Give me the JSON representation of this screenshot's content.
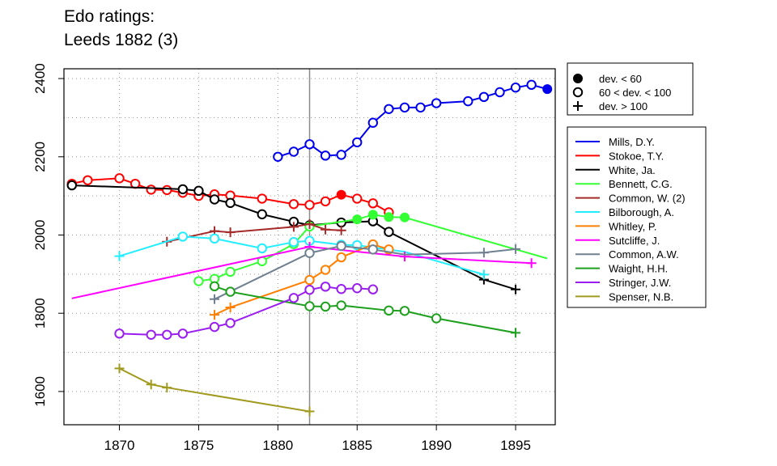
{
  "chart_data": {
    "type": "line",
    "title": [
      "Edo ratings:",
      "Leeds 1882 (3)"
    ],
    "xlabel": "",
    "ylabel": "",
    "xlim": [
      1866.5,
      1897.5
    ],
    "ylim": [
      1515,
      2425
    ],
    "xticks": [
      1870,
      1875,
      1880,
      1885,
      1890,
      1895
    ],
    "yticks": [
      1600,
      1800,
      2000,
      2200,
      2400
    ],
    "grid": true,
    "reference_line_x": 1882,
    "marker_legend": [
      {
        "marker": "filled-circle",
        "label": "dev. < 60"
      },
      {
        "marker": "open-circle",
        "label": "60 < dev. < 100"
      },
      {
        "marker": "plus",
        "label": "dev. > 100"
      }
    ],
    "legend_placement": "right",
    "series": [
      {
        "name": "Mills, D.Y.",
        "color": "#0000ee",
        "points": [
          [
            1880,
            2200,
            "o"
          ],
          [
            1881,
            2213,
            "o"
          ],
          [
            1882,
            2232,
            "o"
          ],
          [
            1883,
            2203,
            "o"
          ],
          [
            1884,
            2205,
            "o"
          ],
          [
            1885,
            2237,
            "o"
          ],
          [
            1886,
            2287,
            "o"
          ],
          [
            1887,
            2322,
            "o"
          ],
          [
            1888,
            2326,
            "o"
          ],
          [
            1889,
            2326,
            "o"
          ],
          [
            1890,
            2337,
            "o"
          ],
          [
            1892,
            2342,
            "o"
          ],
          [
            1893,
            2353,
            "o"
          ],
          [
            1894,
            2365,
            "o"
          ],
          [
            1895,
            2377,
            "o"
          ],
          [
            1896,
            2384,
            "o"
          ],
          [
            1897,
            2373,
            "f"
          ]
        ]
      },
      {
        "name": "Stokoe, T.Y.",
        "color": "#ff0000",
        "points": [
          [
            1867,
            2131,
            "o"
          ],
          [
            1868,
            2140,
            "o"
          ],
          [
            1870,
            2145,
            "o"
          ],
          [
            1871,
            2131,
            "o"
          ],
          [
            1872,
            2116,
            "o"
          ],
          [
            1873,
            2115,
            "o"
          ],
          [
            1874,
            2108,
            "o"
          ],
          [
            1875,
            2100,
            "o"
          ],
          [
            1876,
            2104,
            "o"
          ],
          [
            1877,
            2101,
            "o"
          ],
          [
            1879,
            2093,
            "o"
          ],
          [
            1881,
            2079,
            "o"
          ],
          [
            1882,
            2077,
            "o"
          ],
          [
            1883,
            2086,
            "o"
          ],
          [
            1884,
            2103,
            "f"
          ],
          [
            1885,
            2093,
            "o"
          ],
          [
            1886,
            2081,
            "o"
          ],
          [
            1887,
            2058,
            "o"
          ]
        ]
      },
      {
        "name": "White, Ja.",
        "color": "#000000",
        "points": [
          [
            1867,
            2127,
            "o"
          ],
          [
            1874,
            2117,
            "o"
          ],
          [
            1875,
            2113,
            "o"
          ],
          [
            1876,
            2091,
            "o"
          ],
          [
            1877,
            2082,
            "o"
          ],
          [
            1879,
            2053,
            "o"
          ],
          [
            1881,
            2034,
            "o"
          ],
          [
            1882,
            2025,
            "o"
          ],
          [
            1884,
            2032,
            "o"
          ],
          [
            1886,
            2035,
            "o"
          ],
          [
            1887,
            2008,
            "o"
          ],
          [
            1893,
            1886,
            "+"
          ],
          [
            1895,
            1861,
            "+"
          ]
        ]
      },
      {
        "name": "Bennett, C.G.",
        "color": "#33ff33",
        "points": [
          [
            1875,
            1882,
            "o"
          ],
          [
            1876,
            1888,
            "o"
          ],
          [
            1877,
            1906,
            "o"
          ],
          [
            1879,
            1933,
            "o"
          ],
          [
            1881,
            1977,
            "o"
          ],
          [
            1882,
            2022,
            "o"
          ],
          [
            1885,
            2040,
            "f"
          ],
          [
            1886,
            2052,
            "f"
          ],
          [
            1887,
            2046,
            "f"
          ],
          [
            1888,
            2045,
            "f"
          ],
          [
            1897,
            1940,
            ""
          ]
        ]
      },
      {
        "name": "Common, W. (2)",
        "color": "#a52a2a",
        "points": [
          [
            1873,
            1983,
            "+"
          ],
          [
            1876,
            2010,
            "+"
          ],
          [
            1877,
            2007,
            "+"
          ],
          [
            1881,
            2021,
            "+"
          ],
          [
            1882,
            2028,
            "+"
          ],
          [
            1883,
            2014,
            "+"
          ],
          [
            1884,
            2012,
            "+"
          ]
        ]
      },
      {
        "name": "Bilborough, A.",
        "color": "#22eeff",
        "points": [
          [
            1870,
            1946,
            "+"
          ],
          [
            1874,
            1996,
            "o"
          ],
          [
            1876,
            1991,
            "o"
          ],
          [
            1879,
            1966,
            "o"
          ],
          [
            1881,
            1982,
            "o"
          ],
          [
            1882,
            1985,
            "o"
          ],
          [
            1884,
            1975,
            "o"
          ],
          [
            1885,
            1974,
            "o"
          ],
          [
            1888,
            1957,
            ""
          ],
          [
            1893,
            1899,
            "+"
          ]
        ]
      },
      {
        "name": "Whitley, P.",
        "color": "#ff7f00",
        "points": [
          [
            1876,
            1796,
            "+"
          ],
          [
            1877,
            1815,
            "+"
          ],
          [
            1882,
            1885,
            "o"
          ],
          [
            1883,
            1911,
            "o"
          ],
          [
            1884,
            1943,
            "o"
          ],
          [
            1886,
            1976,
            "o"
          ],
          [
            1887,
            1963,
            "o"
          ]
        ]
      },
      {
        "name": "Sutcliffe, J.",
        "color": "#ff00ff",
        "points": [
          [
            1867,
            1838,
            ""
          ],
          [
            1882,
            1970,
            "+"
          ],
          [
            1888,
            1945,
            "+"
          ],
          [
            1896,
            1928,
            "+"
          ]
        ]
      },
      {
        "name": "Common, A.W.",
        "color": "#708090",
        "points": [
          [
            1876,
            1836,
            "+"
          ],
          [
            1882,
            1954,
            "o"
          ],
          [
            1884,
            1972,
            "o"
          ],
          [
            1886,
            1963,
            "o"
          ],
          [
            1888,
            1950,
            ""
          ],
          [
            1893,
            1955,
            "+"
          ],
          [
            1895,
            1964,
            "+"
          ]
        ]
      },
      {
        "name": "Waight, H.H.",
        "color": "#1ea01e",
        "points": [
          [
            1876,
            1869,
            "o"
          ],
          [
            1877,
            1855,
            "o"
          ],
          [
            1882,
            1818,
            "o"
          ],
          [
            1883,
            1817,
            "o"
          ],
          [
            1884,
            1820,
            "o"
          ],
          [
            1887,
            1807,
            "o"
          ],
          [
            1888,
            1806,
            "o"
          ],
          [
            1890,
            1787,
            "o"
          ],
          [
            1895,
            1750,
            "+"
          ]
        ]
      },
      {
        "name": "Stringer, J.W.",
        "color": "#9a1ef0",
        "points": [
          [
            1870,
            1748,
            "o"
          ],
          [
            1872,
            1745,
            "o"
          ],
          [
            1873,
            1745,
            "o"
          ],
          [
            1874,
            1748,
            "o"
          ],
          [
            1876,
            1765,
            "o"
          ],
          [
            1877,
            1775,
            "o"
          ],
          [
            1881,
            1839,
            "o"
          ],
          [
            1882,
            1860,
            "o"
          ],
          [
            1883,
            1868,
            "o"
          ],
          [
            1884,
            1862,
            "o"
          ],
          [
            1885,
            1864,
            "o"
          ],
          [
            1886,
            1861,
            "o"
          ]
        ]
      },
      {
        "name": "Spenser, N.B.",
        "color": "#a09a1e",
        "points": [
          [
            1870,
            1659,
            "+"
          ],
          [
            1872,
            1618,
            "+"
          ],
          [
            1873,
            1610,
            "+"
          ],
          [
            1882,
            1549,
            "+"
          ]
        ]
      }
    ]
  }
}
